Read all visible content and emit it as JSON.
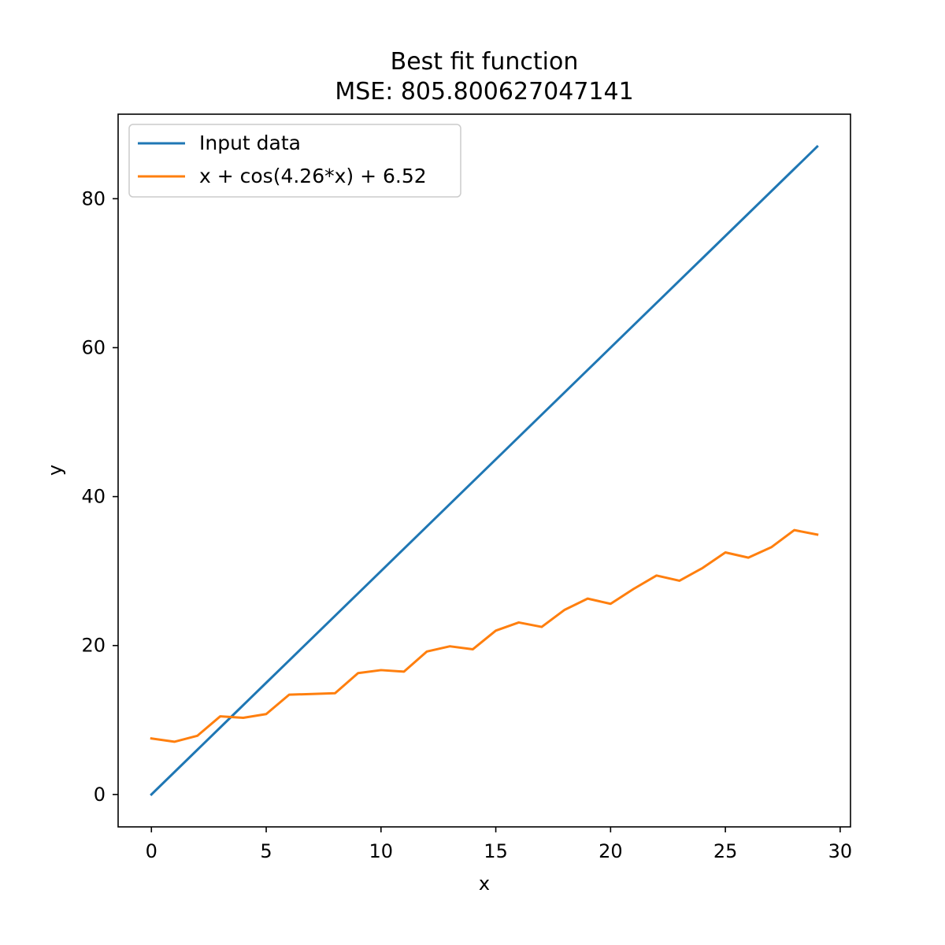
{
  "chart_data": {
    "type": "line",
    "title": "Best fit function",
    "subtitle": "MSE: 805.800627047141",
    "xlabel": "x",
    "ylabel": "y",
    "xlim": [
      -1.45,
      30.45
    ],
    "ylim": [
      -4.35,
      91.35
    ],
    "xticks": [
      0,
      5,
      10,
      15,
      20,
      25,
      30
    ],
    "yticks": [
      0,
      20,
      40,
      60,
      80
    ],
    "grid": false,
    "legend_position": "top-left",
    "series": [
      {
        "name": "Input data",
        "color": "#1f77b4",
        "x": [
          0,
          1,
          2,
          3,
          4,
          5,
          6,
          7,
          8,
          9,
          10,
          11,
          12,
          13,
          14,
          15,
          16,
          17,
          18,
          19,
          20,
          21,
          22,
          23,
          24,
          25,
          26,
          27,
          28,
          29
        ],
        "y": [
          0,
          3,
          6,
          9,
          12,
          15,
          18,
          21,
          24,
          27,
          30,
          33,
          36,
          39,
          42,
          45,
          48,
          51,
          54,
          57,
          60,
          63,
          66,
          69,
          72,
          75,
          78,
          81,
          84,
          87
        ]
      },
      {
        "name": "x + cos(4.26*x) + 6.52",
        "color": "#ff7f0e",
        "x": [
          0,
          1,
          2,
          3,
          4,
          5,
          6,
          7,
          8,
          9,
          10,
          11,
          12,
          13,
          14,
          15,
          16,
          17,
          18,
          19,
          20,
          21,
          22,
          23,
          24,
          25,
          26,
          27,
          28,
          29
        ],
        "y": [
          7.52,
          7.08,
          7.88,
          10.5,
          10.3,
          10.8,
          13.4,
          13.5,
          13.6,
          16.3,
          16.7,
          16.5,
          19.2,
          19.9,
          19.5,
          22.0,
          23.1,
          22.5,
          24.8,
          26.3,
          25.6,
          27.6,
          29.4,
          28.7,
          30.4,
          32.5,
          31.8,
          33.2,
          35.5,
          34.9
        ]
      }
    ]
  }
}
